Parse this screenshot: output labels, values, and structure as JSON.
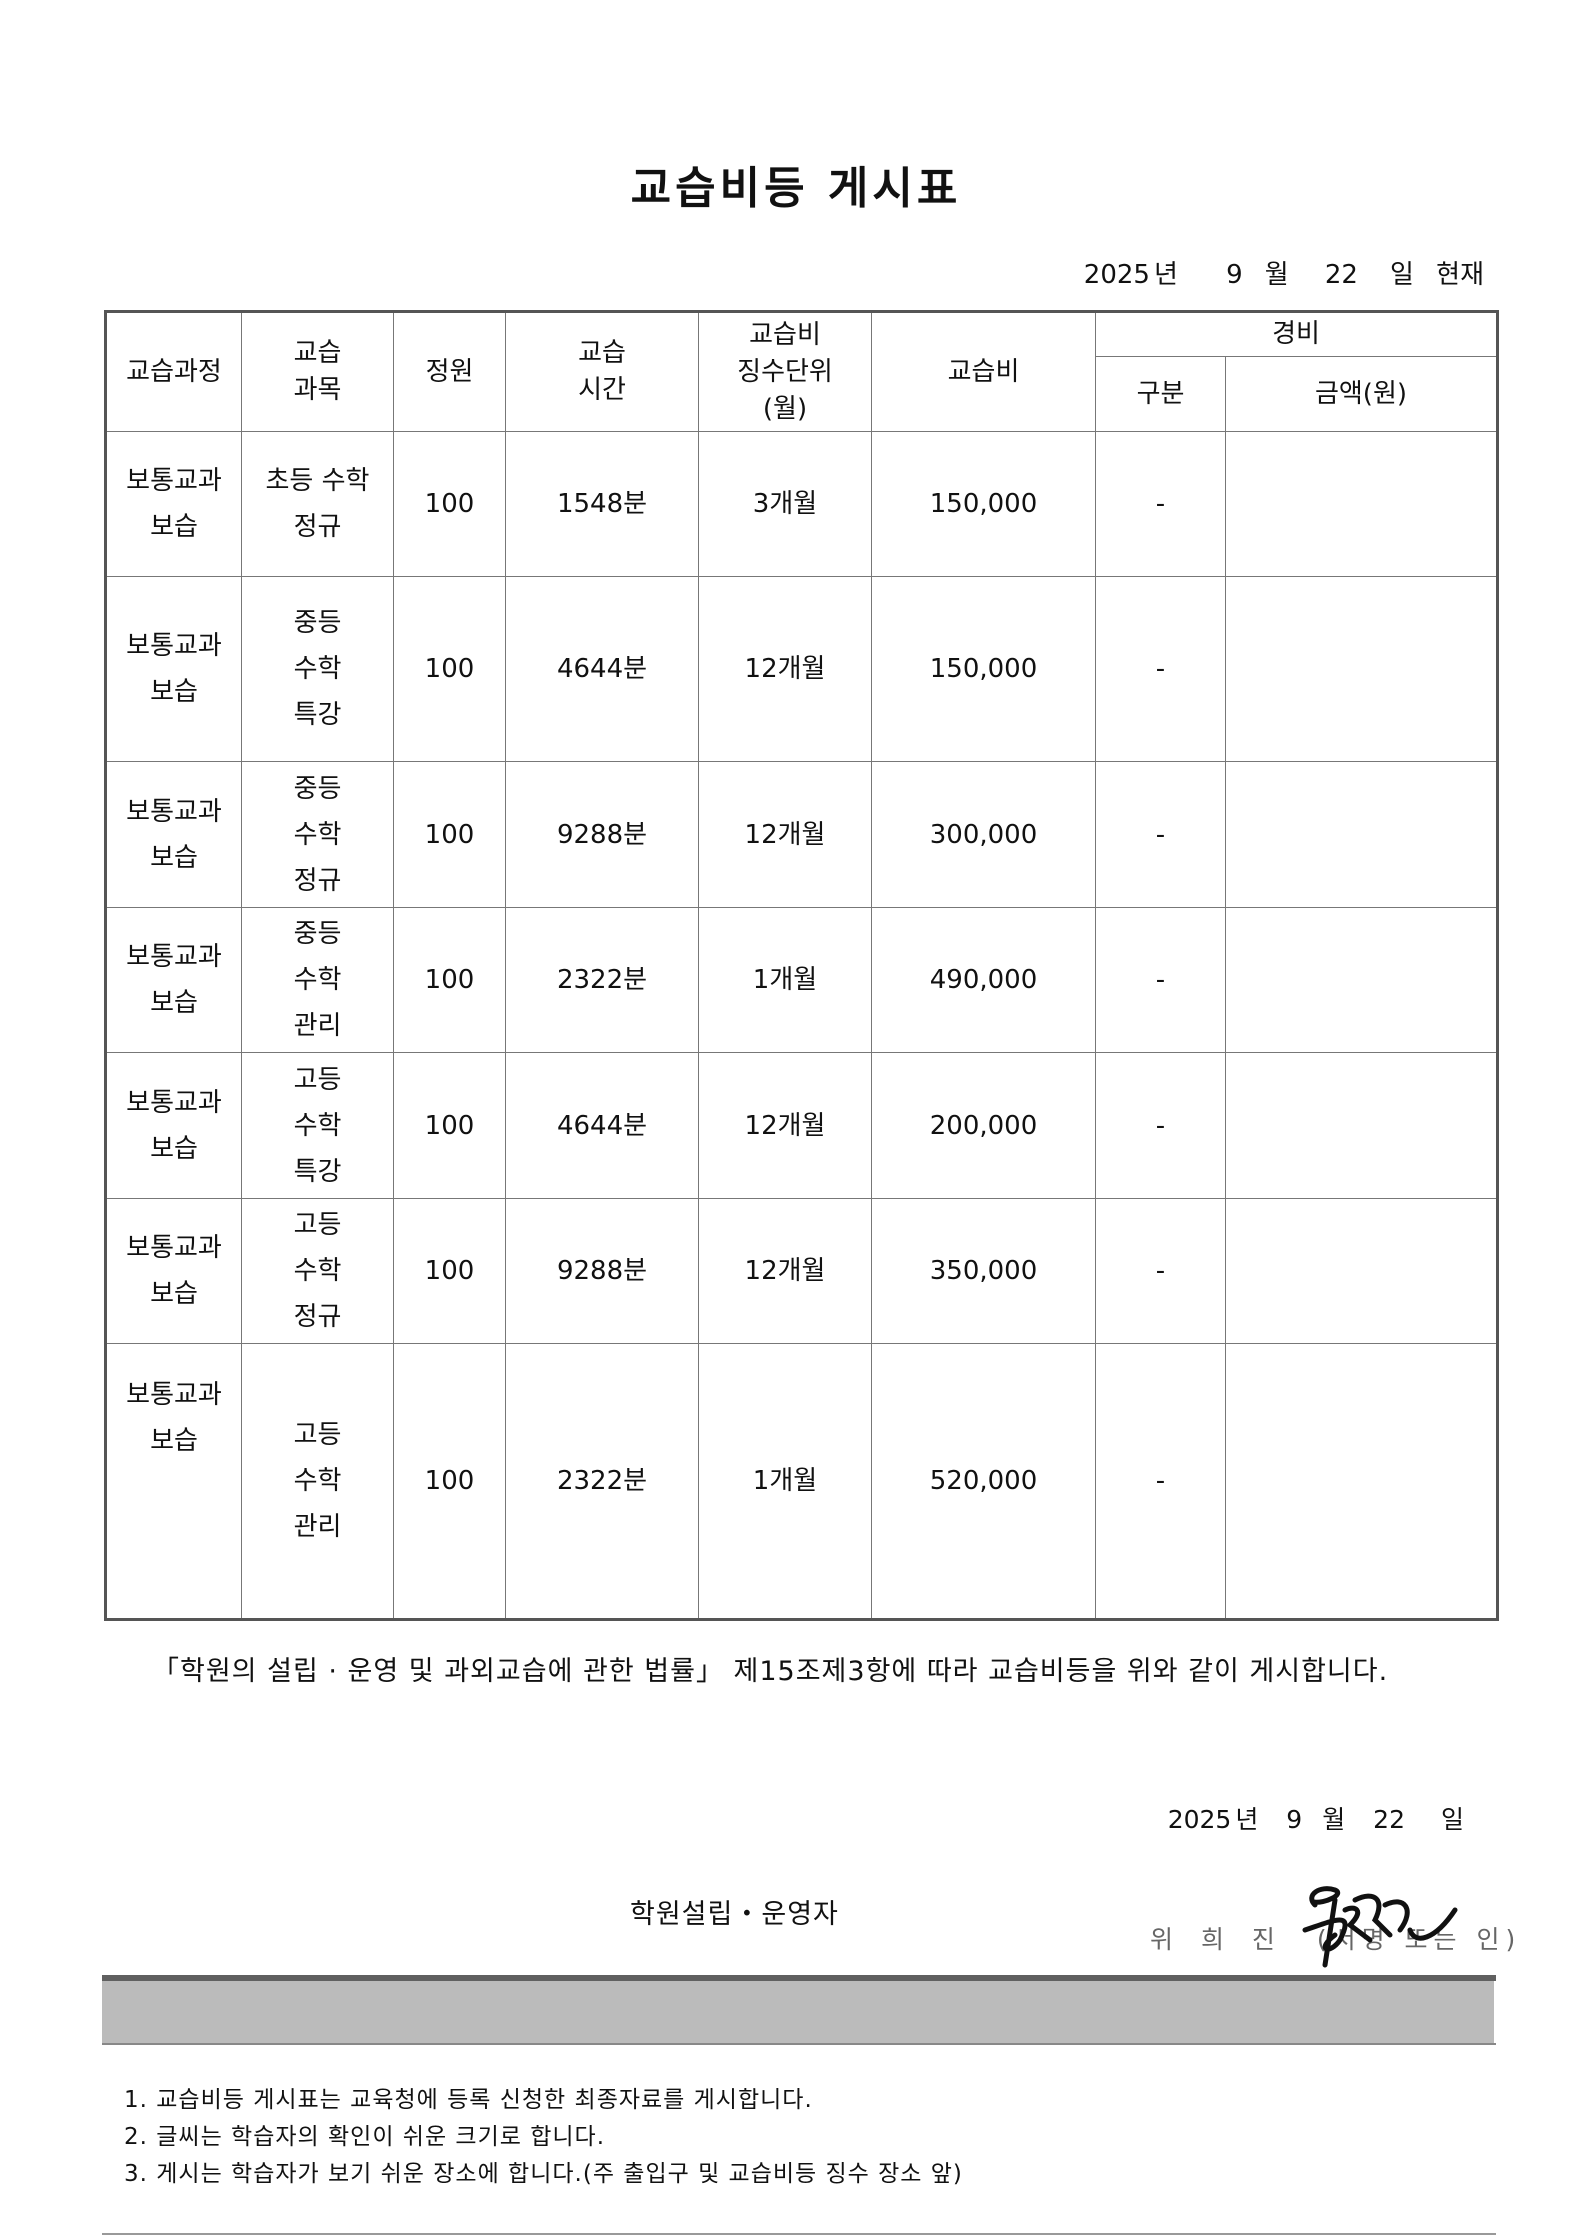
{
  "title": "교습비등 게시표",
  "as_of": {
    "year": "2025",
    "year_unit": "년",
    "month": "9",
    "month_unit": "월",
    "day": "22",
    "day_unit": "일",
    "suffix": "현재"
  },
  "table": {
    "headers": {
      "course": "교습과정",
      "subject": [
        "교습",
        "과목"
      ],
      "capacity": "정원",
      "hours": [
        "교습",
        "시간"
      ],
      "unit": [
        "교습비",
        "징수단위",
        "(월)"
      ],
      "fee": "교습비",
      "expense": "경비",
      "expense_type": "구분",
      "expense_amount": "금액(원)"
    },
    "rows": [
      {
        "course": [
          "보통교과",
          "보습"
        ],
        "subject": [
          "초등 수학",
          "정규"
        ],
        "capacity": "100",
        "hours": "1548분",
        "unit": "3개월",
        "fee": "150,000",
        "expense_type": "-",
        "expense_amount": ""
      },
      {
        "course": [
          "보통교과",
          "보습"
        ],
        "subject": [
          "중등",
          "수학",
          "특강"
        ],
        "capacity": "100",
        "hours": "4644분",
        "unit": "12개월",
        "fee": "150,000",
        "expense_type": "-",
        "expense_amount": ""
      },
      {
        "course": [
          "보통교과",
          "보습"
        ],
        "subject": [
          "중등",
          "수학",
          "정규"
        ],
        "capacity": "100",
        "hours": "9288분",
        "unit": "12개월",
        "fee": "300,000",
        "expense_type": "-",
        "expense_amount": ""
      },
      {
        "course": [
          "보통교과",
          "보습"
        ],
        "subject": [
          "중등",
          "수학",
          "관리"
        ],
        "capacity": "100",
        "hours": "2322분",
        "unit": "1개월",
        "fee": "490,000",
        "expense_type": "-",
        "expense_amount": ""
      },
      {
        "course": [
          "보통교과",
          "보습"
        ],
        "subject": [
          "고등",
          "수학",
          "특강"
        ],
        "capacity": "100",
        "hours": "4644분",
        "unit": "12개월",
        "fee": "200,000",
        "expense_type": "-",
        "expense_amount": ""
      },
      {
        "course": [
          "보통교과",
          "보습"
        ],
        "subject": [
          "고등",
          "수학",
          "정규"
        ],
        "capacity": "100",
        "hours": "9288분",
        "unit": "12개월",
        "fee": "350,000",
        "expense_type": "-",
        "expense_amount": ""
      },
      {
        "course": [
          "보통교과",
          "보습"
        ],
        "subject": [
          "고등",
          "수학",
          "관리"
        ],
        "capacity": "100",
        "hours": "2322분",
        "unit": "1개월",
        "fee": "520,000",
        "expense_type": "-",
        "expense_amount": ""
      }
    ]
  },
  "statement": "「학원의 설립 · 운영 및 과외교습에 관한 법률」 제15조제3항에 따라 교습비등을 위와 같이 게시합니다.",
  "signed_date": {
    "year": "2025",
    "year_unit": "년",
    "month": "9",
    "month_unit": "월",
    "day": "22",
    "day_unit": "일"
  },
  "founder_label": "학원설립・운영자",
  "founder_name": "위 희 진",
  "signature_note": "(서명 또는 인)",
  "notes": [
    "1. 교습비등 게시표는 교육청에 등록 신청한 최종자료를 게시합니다.",
    "2. 글씨는 학습자의 확인이 쉬운 크기로 합니다.",
    "3. 게시는 학습자가 보기 쉬운 장소에 합니다.(주 출입구 및 교습비등 징수 장소 앞)"
  ]
}
